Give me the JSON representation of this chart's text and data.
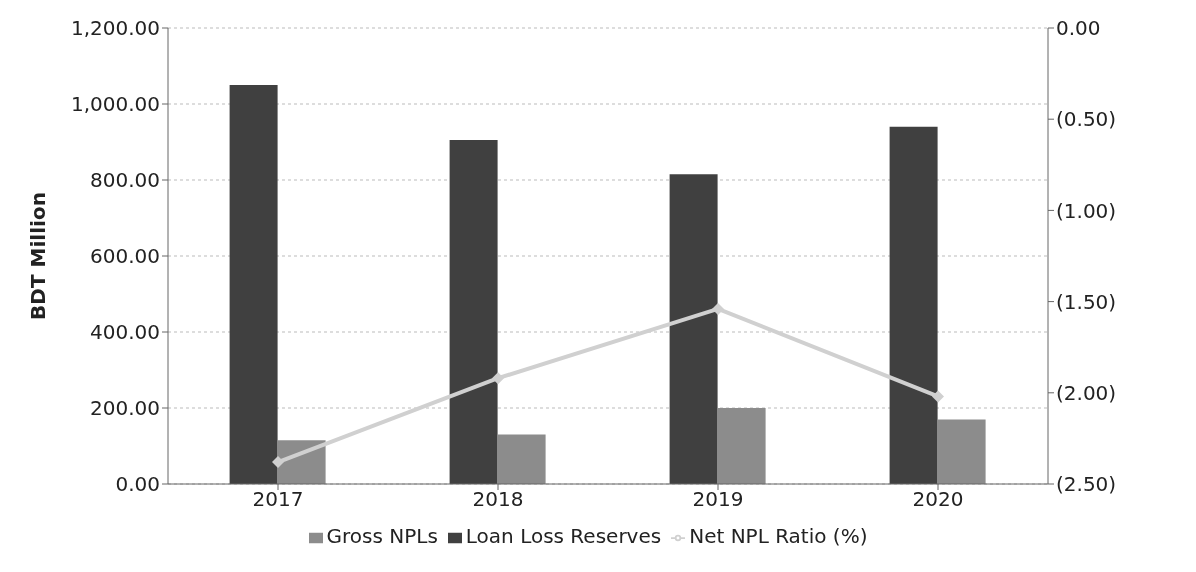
{
  "chart_data": {
    "type": "bar",
    "ylabel": "BDT Million",
    "categories": [
      "2017",
      "2018",
      "2019",
      "2020"
    ],
    "series": [
      {
        "name": "Loan Loss Reserves",
        "color": "#404040",
        "values": [
          1050,
          905,
          815,
          940
        ]
      },
      {
        "name": "Gross NPLs",
        "color": "#8c8c8c",
        "values": [
          115,
          130,
          200,
          170
        ]
      },
      {
        "name": "Net NPL Ratio (%)",
        "type": "line",
        "axis": "y2",
        "color": "#d0d0d0",
        "values": [
          -2.38,
          -1.92,
          -1.54,
          -2.02
        ]
      }
    ],
    "ylim": [
      0,
      1200
    ],
    "yticks": [
      {
        "value": 0,
        "label": "0.00"
      },
      {
        "value": 200,
        "label": "200.00"
      },
      {
        "value": 400,
        "label": "400.00"
      },
      {
        "value": 600,
        "label": "600.00"
      },
      {
        "value": 800,
        "label": "800.00"
      },
      {
        "value": 1000,
        "label": "1,000.00"
      },
      {
        "value": 1200,
        "label": "1,200.00"
      }
    ],
    "y2lim": [
      -2.5,
      0
    ],
    "y2ticks": [
      {
        "value": -2.5,
        "label": "(2.50)"
      },
      {
        "value": -2,
        "label": "(2.00)"
      },
      {
        "value": -1.5,
        "label": "(1.50)"
      },
      {
        "value": -1,
        "label": "(1.00)"
      },
      {
        "value": -0.5,
        "label": "(0.50)"
      },
      {
        "value": 0,
        "label": "0.00"
      }
    ],
    "grid": "y",
    "legend": "bottom",
    "marker": "diamond",
    "line_style": "solid"
  }
}
